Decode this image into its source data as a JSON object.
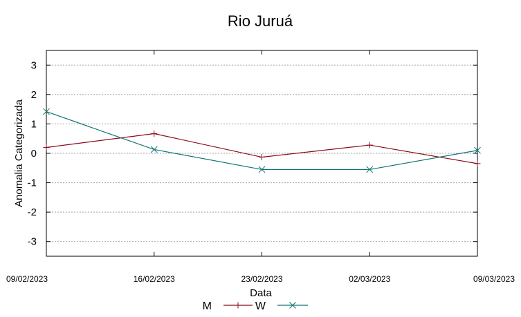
{
  "chart_data": {
    "type": "line",
    "title": "Rio Juruá",
    "xlabel": "Data",
    "ylabel": "Anomalia Categorizada",
    "x": [
      "09/02/2023",
      "16/02/2023",
      "23/02/2023",
      "02/03/2023",
      "09/03/2023"
    ],
    "yticks": [
      3,
      2,
      1,
      0,
      -1,
      -2,
      -3
    ],
    "ylim": [
      -3.5,
      3.5
    ],
    "grid": true,
    "legend_position": "bottom-center",
    "series": [
      {
        "name": "M",
        "color": "#8b0a1a",
        "marker": "plus",
        "values": [
          0.2,
          0.67,
          -0.13,
          0.28,
          -0.35
        ]
      },
      {
        "name": "W",
        "color": "#0e7474",
        "marker": "cross",
        "values": [
          1.42,
          0.13,
          -0.55,
          -0.55,
          0.1
        ]
      }
    ]
  }
}
